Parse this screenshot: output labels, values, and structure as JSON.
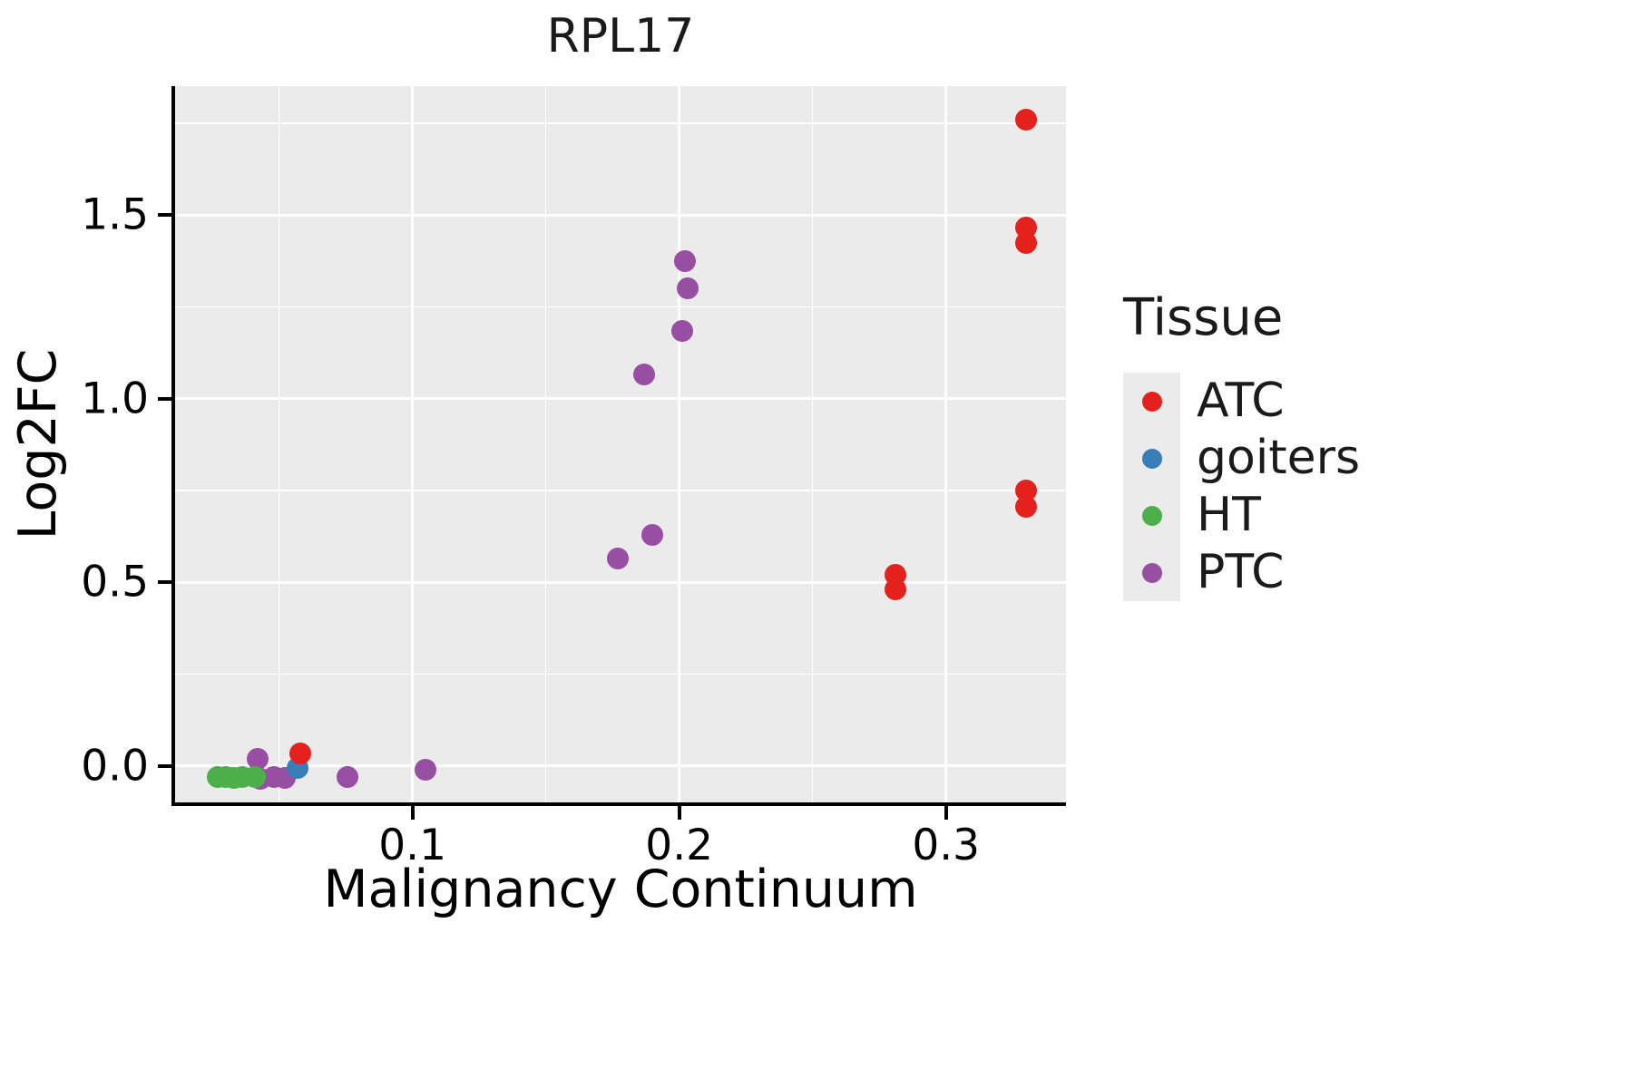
{
  "chart_data": {
    "type": "scatter",
    "title": "RPL17",
    "xlabel": "Malignancy Continuum",
    "ylabel": "Log2FC",
    "xlim": [
      0.011,
      0.345
    ],
    "ylim": [
      -0.099,
      1.851
    ],
    "x_ticks": [
      0.1,
      0.2,
      0.3
    ],
    "x_tick_labels": [
      "0.1",
      "0.2",
      "0.3"
    ],
    "y_ticks": [
      0.0,
      0.5,
      1.0,
      1.5
    ],
    "y_tick_labels": [
      "0.0",
      "0.5",
      "1.0",
      "1.5"
    ],
    "grid": true,
    "panel_background": "#EBEBEB",
    "legend_title": "Tissue",
    "legend_position": "right",
    "series": [
      {
        "name": "ATC",
        "color": "#E4211C",
        "points": [
          [
            0.058,
            0.035
          ],
          [
            0.281,
            0.52
          ],
          [
            0.281,
            0.48
          ],
          [
            0.33,
            1.76
          ],
          [
            0.33,
            1.465
          ],
          [
            0.33,
            1.425
          ],
          [
            0.33,
            0.75
          ],
          [
            0.33,
            0.705
          ]
        ]
      },
      {
        "name": "goiters",
        "color": "#377EB8",
        "points": [
          [
            0.057,
            -0.005
          ]
        ]
      },
      {
        "name": "HT",
        "color": "#4DAF4A",
        "points": [
          [
            0.027,
            -0.03
          ],
          [
            0.03,
            -0.03
          ],
          [
            0.033,
            -0.032
          ],
          [
            0.036,
            -0.03
          ],
          [
            0.041,
            -0.03
          ]
        ]
      },
      {
        "name": "PTC",
        "color": "#984EA3",
        "points": [
          [
            0.042,
            0.02
          ],
          [
            0.043,
            -0.035
          ],
          [
            0.048,
            -0.03
          ],
          [
            0.052,
            -0.032
          ],
          [
            0.0755,
            -0.03
          ],
          [
            0.105,
            -0.01
          ],
          [
            0.177,
            0.565
          ],
          [
            0.19,
            0.63
          ],
          [
            0.187,
            1.065
          ],
          [
            0.202,
            1.375
          ],
          [
            0.203,
            1.3
          ],
          [
            0.201,
            1.185
          ]
        ]
      }
    ]
  }
}
